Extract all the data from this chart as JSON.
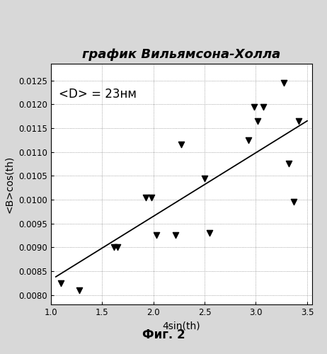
{
  "title": "график Вильямсона-Холла",
  "xlabel": "4sin(th)",
  "ylabel": "<B>cos(th)",
  "annotation": "<D> = 23нм",
  "xlim": [
    1.0,
    3.55
  ],
  "ylim": [
    0.0078,
    0.01285
  ],
  "xticks": [
    1.0,
    1.5,
    2.0,
    2.5,
    3.0,
    3.5
  ],
  "yticks": [
    0.008,
    0.0085,
    0.009,
    0.0095,
    0.01,
    0.0105,
    0.011,
    0.0115,
    0.012,
    0.0125
  ],
  "scatter_x": [
    1.1,
    1.28,
    1.62,
    1.65,
    1.93,
    1.98,
    2.03,
    2.22,
    2.27,
    2.5,
    2.55,
    2.93,
    2.98,
    3.02,
    3.07,
    3.27,
    3.32,
    3.37,
    3.42
  ],
  "scatter_y": [
    0.00825,
    0.0081,
    0.009,
    0.009,
    0.01005,
    0.01005,
    0.00925,
    0.00925,
    0.01115,
    0.01045,
    0.0093,
    0.01125,
    0.01195,
    0.01165,
    0.01195,
    0.01245,
    0.01075,
    0.00995,
    0.01165
  ],
  "line_x": [
    1.05,
    3.5
  ],
  "line_y": [
    0.00838,
    0.01165
  ],
  "marker_color": "black",
  "line_color": "black",
  "plot_bg": "#ffffff",
  "fig_bg": "#d8d8d8",
  "fig_caption": "Фиг. 2",
  "title_fontsize": 13,
  "label_fontsize": 10,
  "tick_fontsize": 8.5,
  "annotation_fontsize": 12,
  "caption_fontsize": 12
}
